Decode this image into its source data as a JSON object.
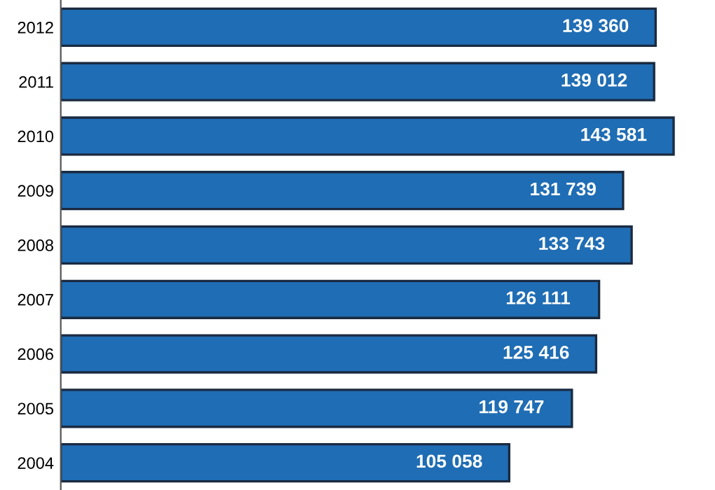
{
  "chart_data": {
    "type": "bar",
    "orientation": "horizontal",
    "categories": [
      "2012",
      "2011",
      "2010",
      "2009",
      "2008",
      "2007",
      "2006",
      "2005",
      "2004"
    ],
    "values": [
      139360,
      139012,
      143581,
      131739,
      133743,
      126111,
      125416,
      119747,
      105058
    ],
    "value_labels": [
      "139 360",
      "139 012",
      "143 581",
      "131 739",
      "133 743",
      "126 111",
      "125 416",
      "119 747",
      "105 058"
    ],
    "color": "#1f6db4",
    "grid": false,
    "legend": false
  }
}
